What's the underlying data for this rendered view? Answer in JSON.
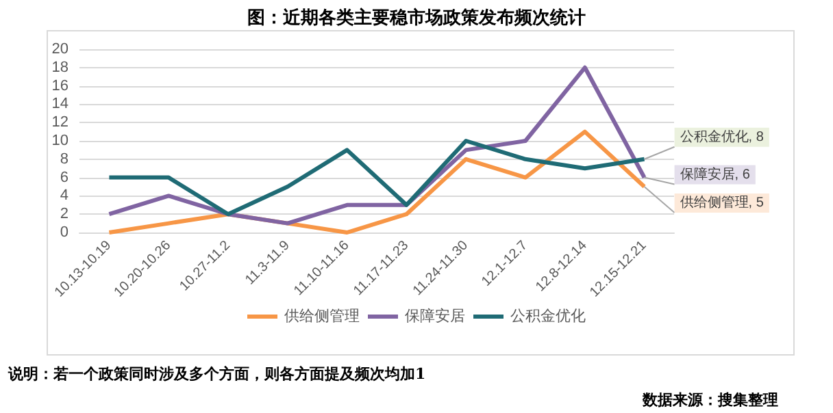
{
  "chart_data": {
    "type": "line",
    "title": "图：近期各类主要稳市场政策发布频次统计",
    "categories": [
      "10.13-10.19",
      "10.20-10.26",
      "10.27-11.2",
      "11.3-11.9",
      "11.10-11.16",
      "11.17-11.23",
      "11.24-11.30",
      "12.1-12.7",
      "12.8-12.14",
      "12.15-12.21"
    ],
    "series": [
      {
        "name": "供给侧管理",
        "color": "#f79646",
        "values": [
          0,
          1,
          2,
          1,
          0,
          2,
          8,
          6,
          11,
          5
        ],
        "value_labels": [
          null,
          null,
          null,
          null,
          null,
          null,
          null,
          null,
          null,
          "供给侧管理, 5"
        ]
      },
      {
        "name": "保障安居",
        "color": "#8064a2",
        "values": [
          2,
          4,
          2,
          1,
          3,
          3,
          9,
          10,
          18,
          6
        ],
        "value_labels": [
          null,
          null,
          null,
          null,
          null,
          null,
          null,
          null,
          null,
          "保障安居, 6"
        ]
      },
      {
        "name": "公积金优化",
        "color": "#1f6b75",
        "values": [
          6,
          6,
          2,
          5,
          9,
          3,
          10,
          8,
          7,
          8
        ],
        "value_labels": [
          null,
          null,
          null,
          null,
          null,
          null,
          null,
          null,
          null,
          "公积金优化, 8"
        ]
      }
    ],
    "ylim": [
      0,
      20
    ],
    "yticks": [
      0,
      2,
      4,
      6,
      8,
      10,
      12,
      14,
      16,
      18,
      20
    ],
    "grid": "y",
    "legend": "bottom",
    "marker": "none",
    "line_style": "solid",
    "annotations": [
      "说明：若一个政策同时涉及多个方面，则各方面提及频次均加1",
      "数据来源：搜集整理"
    ]
  }
}
